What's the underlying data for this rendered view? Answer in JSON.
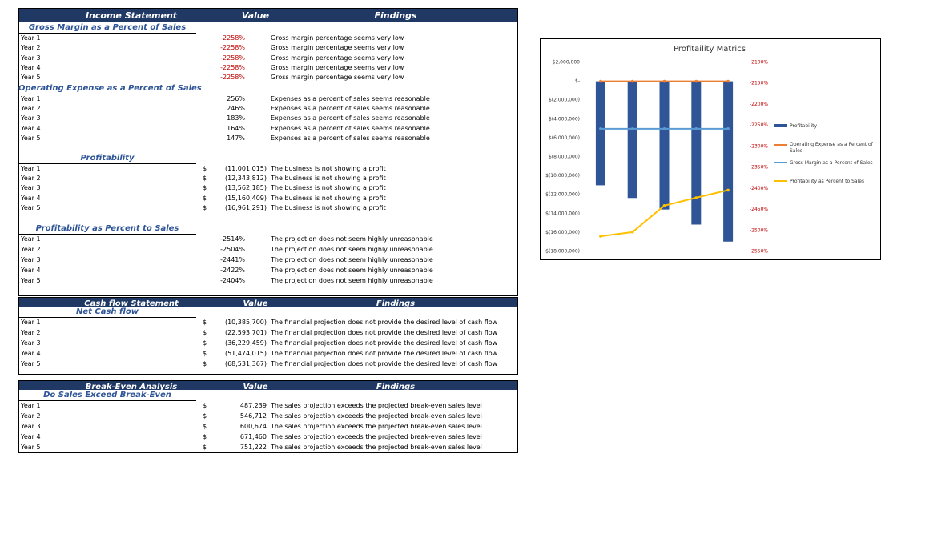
{
  "sections": [
    {
      "header": [
        "Income Statement",
        "Value",
        "Findings"
      ],
      "groups": [
        {
          "title": "Gross Margin as a Percent of Sales",
          "value_color": "#c00000",
          "rows": [
            [
              "Year 1",
              "-2258%",
              "Gross margin percentage seems very low"
            ],
            [
              "Year 2",
              "-2258%",
              "Gross margin percentage seems very low"
            ],
            [
              "Year 3",
              "-2258%",
              "Gross margin percentage seems very low"
            ],
            [
              "Year 4",
              "-2258%",
              "Gross margin percentage seems very low"
            ],
            [
              "Year 5",
              "-2258%",
              "Gross margin percentage seems very low"
            ]
          ]
        },
        {
          "title": "Operating Expense as a Percent of Sales",
          "rows": [
            [
              "Year 1",
              "256%",
              "Expenses as a percent of sales seems reasonable"
            ],
            [
              "Year 2",
              "246%",
              "Expenses as a percent of sales seems reasonable"
            ],
            [
              "Year 3",
              "183%",
              "Expenses as a percent of sales seems reasonable"
            ],
            [
              "Year 4",
              "164%",
              "Expenses as a percent of sales seems reasonable"
            ],
            [
              "Year 5",
              "147%",
              "Expenses as a percent of sales seems reasonable"
            ]
          ]
        },
        {
          "title": "Profitability",
          "rows": [
            [
              "Year 1",
              "$",
              "(11,001,015)",
              "The business is not showing a profit"
            ],
            [
              "Year 2",
              "$",
              "(12,343,812)",
              "The business is not showing a profit"
            ],
            [
              "Year 3",
              "$",
              "(13,562,185)",
              "The business is not showing a profit"
            ],
            [
              "Year 4",
              "$",
              "(15,160,409)",
              "The business is not showing a profit"
            ],
            [
              "Year 5",
              "$",
              "(16,961,291)",
              "The business is not showing a profit"
            ]
          ]
        },
        {
          "title": "Profitability as Percent to Sales",
          "rows": [
            [
              "Year 1",
              "-2514%",
              "The projection does not seem highly unreasonable"
            ],
            [
              "Year 2",
              "-2504%",
              "The projection does not seem highly unreasonable"
            ],
            [
              "Year 3",
              "-2441%",
              "The projection does not seem highly unreasonable"
            ],
            [
              "Year 4",
              "-2422%",
              "The projection does not seem highly unreasonable"
            ],
            [
              "Year 5",
              "-2404%",
              "The projection does not seem highly unreasonable"
            ]
          ]
        }
      ]
    },
    {
      "header": [
        "Cash flow Statement",
        "Value",
        "Findings"
      ],
      "groups": [
        {
          "title": "Net Cash flow",
          "rows": [
            [
              "Year 1",
              "$",
              "(10,385,700)",
              "The financial projection does not provide the desired level of cash flow"
            ],
            [
              "Year 2",
              "$",
              "(22,593,701)",
              "The financial projection does not provide the desired level of cash flow"
            ],
            [
              "Year 3",
              "$",
              "(36,229,459)",
              "The financial projection does not provide the desired level of cash flow"
            ],
            [
              "Year 4",
              "$",
              "(51,474,015)",
              "The financial projection does not provide the desired level of cash flow"
            ],
            [
              "Year 5",
              "$",
              "(68,531,367)",
              "The financial projection does not provide the desired level of cash flow"
            ]
          ]
        }
      ]
    },
    {
      "header": [
        "Break-Even Analysis",
        "Value",
        "Findings"
      ],
      "groups": [
        {
          "title": "Do Sales Exceed Break-Even",
          "rows": [
            [
              "Year 1",
              "$",
              "487,239",
              "The sales projection exceeds the projected break-even sales level"
            ],
            [
              "Year 2",
              "$",
              "546,712",
              "The sales projection exceeds the projected break-even sales level"
            ],
            [
              "Year 3",
              "$",
              "600,674",
              "The sales projection exceeds the projected break-even sales level"
            ],
            [
              "Year 4",
              "$",
              "671,460",
              "The sales projection exceeds the projected break-even sales level"
            ],
            [
              "Year 5",
              "$",
              "751,222",
              "The sales projection exceeds the projected break-even sales level"
            ]
          ]
        }
      ]
    }
  ],
  "chart_data": {
    "type": "bar",
    "title": "Profitaility Matrics",
    "categories": [
      null,
      null,
      null,
      null,
      null
    ],
    "series": [
      {
        "name": "Profitability",
        "type": "bar",
        "color": "#2f5597",
        "values": [
          -11001015,
          -12343812,
          -13562185,
          -15160409,
          -16961291
        ]
      },
      {
        "name": "Operating Expense as a Percent of Sales",
        "type": "line",
        "color": "#ed7d31",
        "values": [
          2.56,
          2.46,
          1.83,
          1.64,
          1.47
        ]
      },
      {
        "name": "Gross Margin as a Percent of Sales",
        "type": "line",
        "color": "#5b9bd5",
        "axis": "y2",
        "values": [
          -2258,
          -2258,
          -2258,
          -2258,
          -2258
        ]
      },
      {
        "name": "Profitability as Percent to Sales",
        "type": "line",
        "color": "#ffc000",
        "axis": "y2",
        "values": [
          -2514,
          -2504,
          -2441,
          -2422,
          -2404
        ]
      }
    ],
    "ylim": [
      -18000000,
      2000000
    ],
    "yticks": [
      {
        "value": 2000000,
        "label": "$2,000,000"
      },
      {
        "value": 0,
        "label": "$-"
      },
      {
        "value": -2000000,
        "label": "$(2,000,000)"
      },
      {
        "value": -4000000,
        "label": "$(4,000,000)"
      },
      {
        "value": -6000000,
        "label": "$(6,000,000)"
      },
      {
        "value": -8000000,
        "label": "$(8,000,000)"
      },
      {
        "value": -10000000,
        "label": "$(10,000,000)"
      },
      {
        "value": -12000000,
        "label": "$(12,000,000)"
      },
      {
        "value": -14000000,
        "label": "$(14,000,000)"
      },
      {
        "value": -16000000,
        "label": "$(16,000,000)"
      },
      {
        "value": -18000000,
        "label": "$(18,000,000)"
      }
    ],
    "y2lim": [
      -2550,
      -2100
    ],
    "y2ticks": [
      {
        "value": -2100,
        "label": "-2100%"
      },
      {
        "value": -2150,
        "label": "-2150%"
      },
      {
        "value": -2200,
        "label": "-2200%"
      },
      {
        "value": -2250,
        "label": "-2250%"
      },
      {
        "value": -2300,
        "label": "-2300%"
      },
      {
        "value": -2350,
        "label": "-2350%"
      },
      {
        "value": -2400,
        "label": "-2400%"
      },
      {
        "value": -2450,
        "label": "-2450%"
      },
      {
        "value": -2500,
        "label": "-2500%"
      },
      {
        "value": -2550,
        "label": "-2550%"
      }
    ],
    "y2_color": "#c00000",
    "legend": "right",
    "grid": false
  }
}
